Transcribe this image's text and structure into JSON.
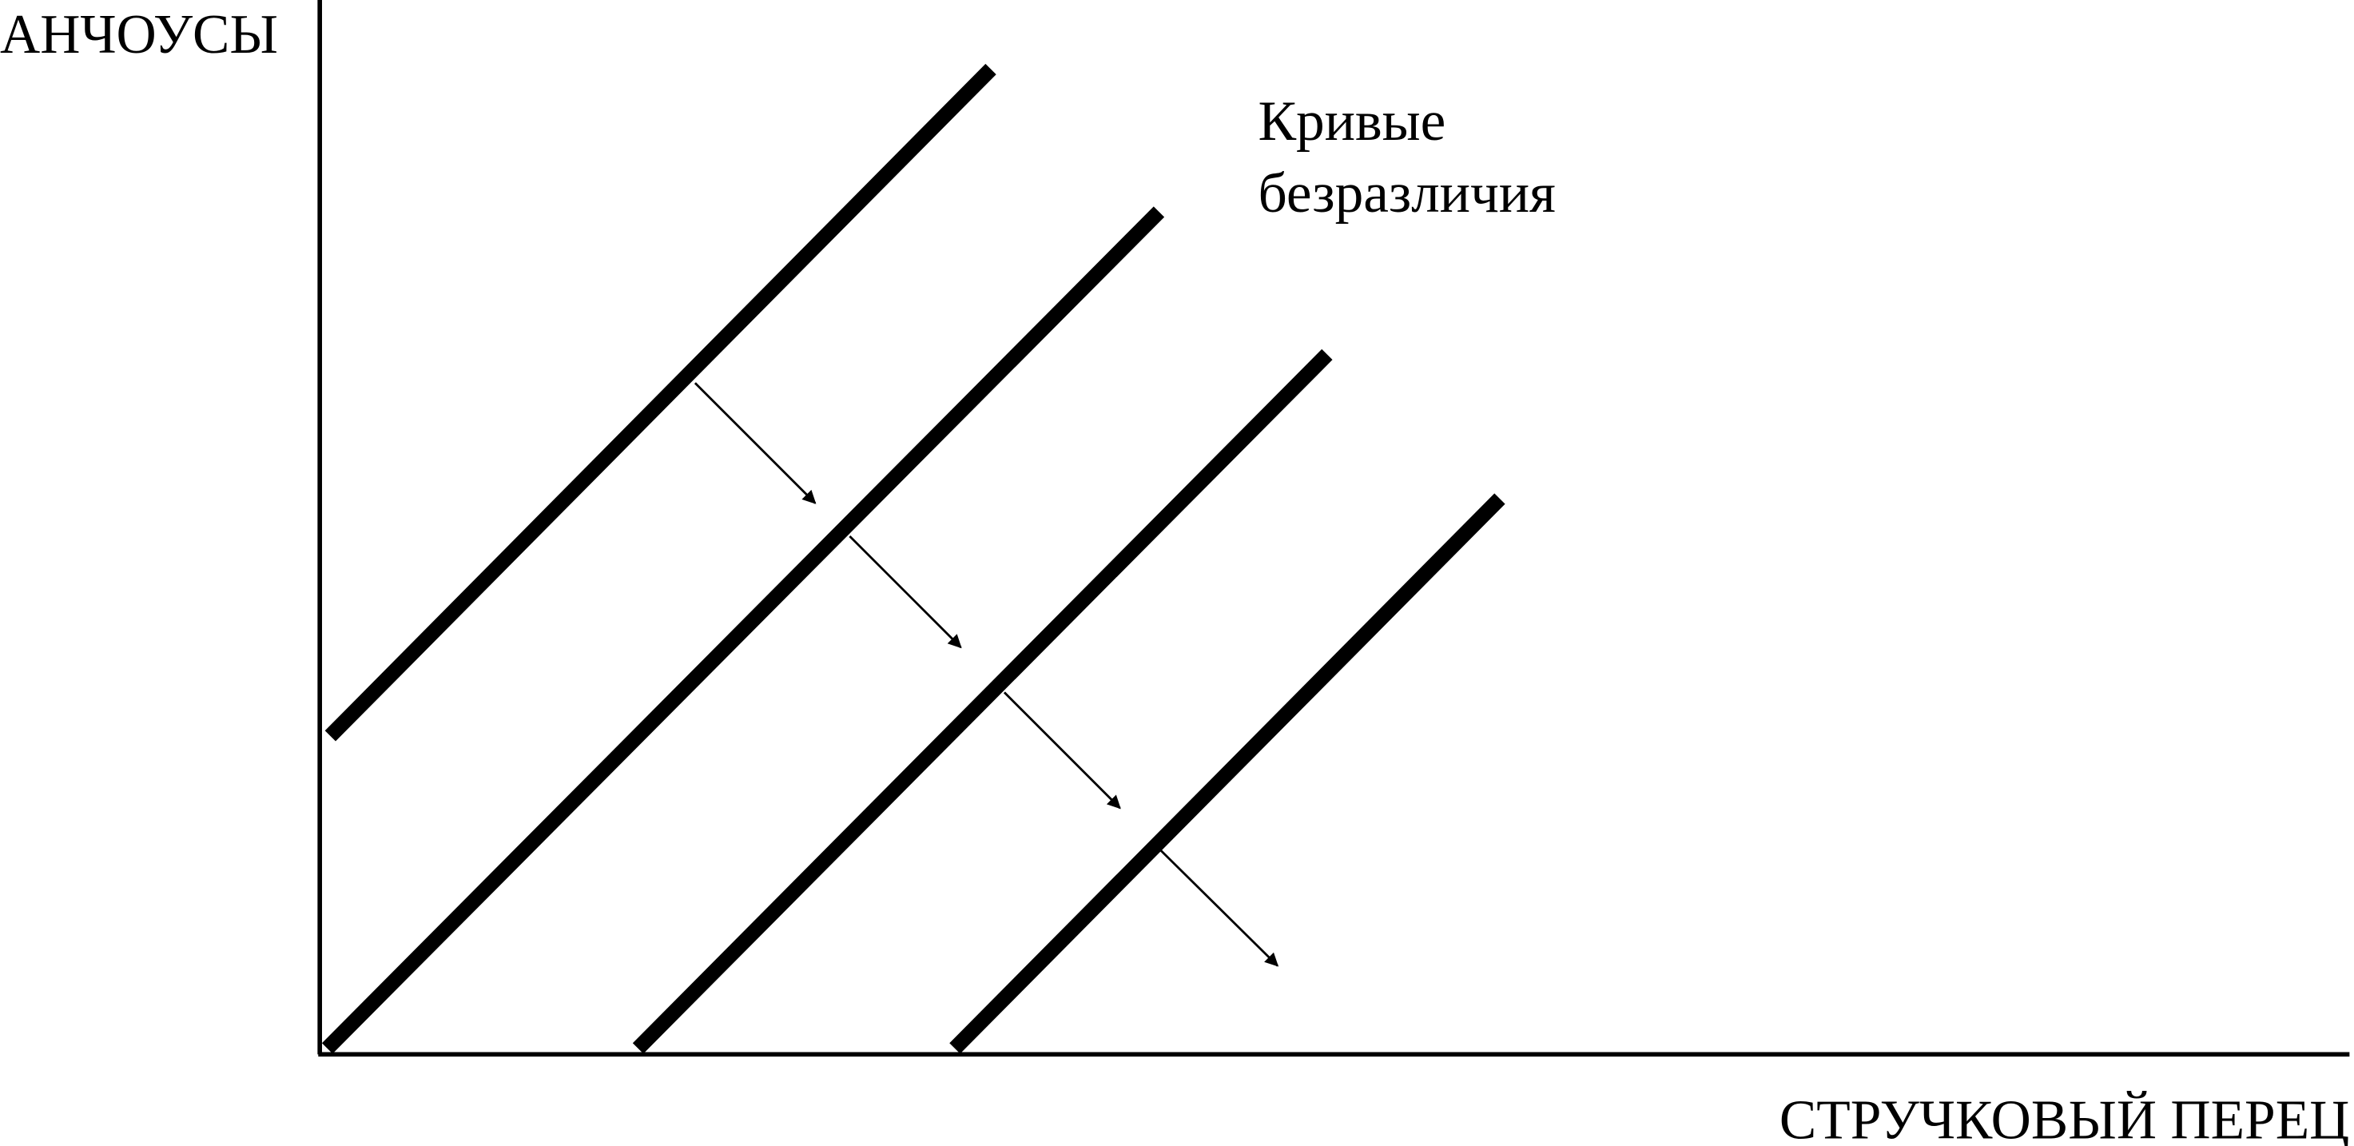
{
  "y_axis_label": "АНЧОУСЫ",
  "x_axis_label": "СТРУЧКОВЫЙ ПЕРЕЦ",
  "annotation": {
    "lines": [
      "Кривые",
      "безразличия"
    ]
  }
}
